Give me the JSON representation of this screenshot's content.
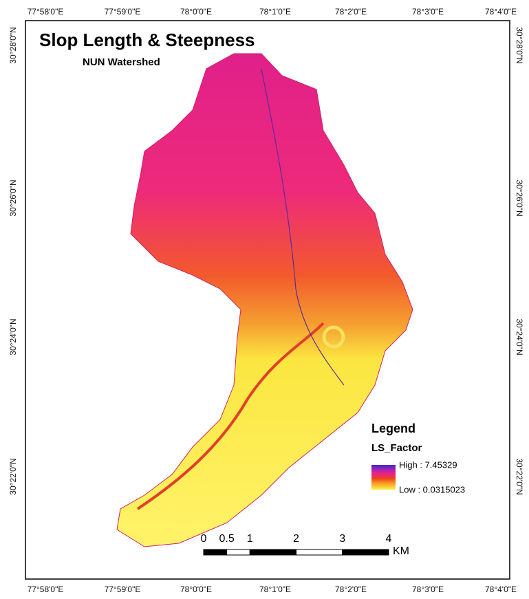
{
  "title": "Slop Length & Steepness",
  "subtitle": "NUN Watershed",
  "longitudes_top": [
    "77°58'0\"E",
    "77°59'0\"E",
    "78°0'0\"E",
    "78°1'0\"E",
    "78°2'0\"E",
    "78°3'0\"E",
    "78°4'0\"E"
  ],
  "longitudes_bottom": [
    "77°58'0\"E",
    "77°59'0\"E",
    "78°0'0\"E",
    "78°1'0\"E",
    "78°2'0\"E",
    "78°3'0\"E",
    "78°4'0\"E"
  ],
  "latitudes_left": [
    "30°28'0\"N",
    "30°26'0\"N",
    "30°24'0\"N",
    "30°22'0\"N"
  ],
  "latitudes_right": [
    "30°28'0\"N",
    "30°26'0\"N",
    "30°24'0\"N",
    "30°22'0\"N"
  ],
  "legend": {
    "title": "Legend",
    "field": "LS_Factor",
    "high": "High : 7.45329",
    "low": "Low : 0.0315023"
  },
  "scale_bar": {
    "ticks": [
      0,
      0.5,
      1,
      2,
      3,
      4
    ],
    "unit": "KM"
  }
}
